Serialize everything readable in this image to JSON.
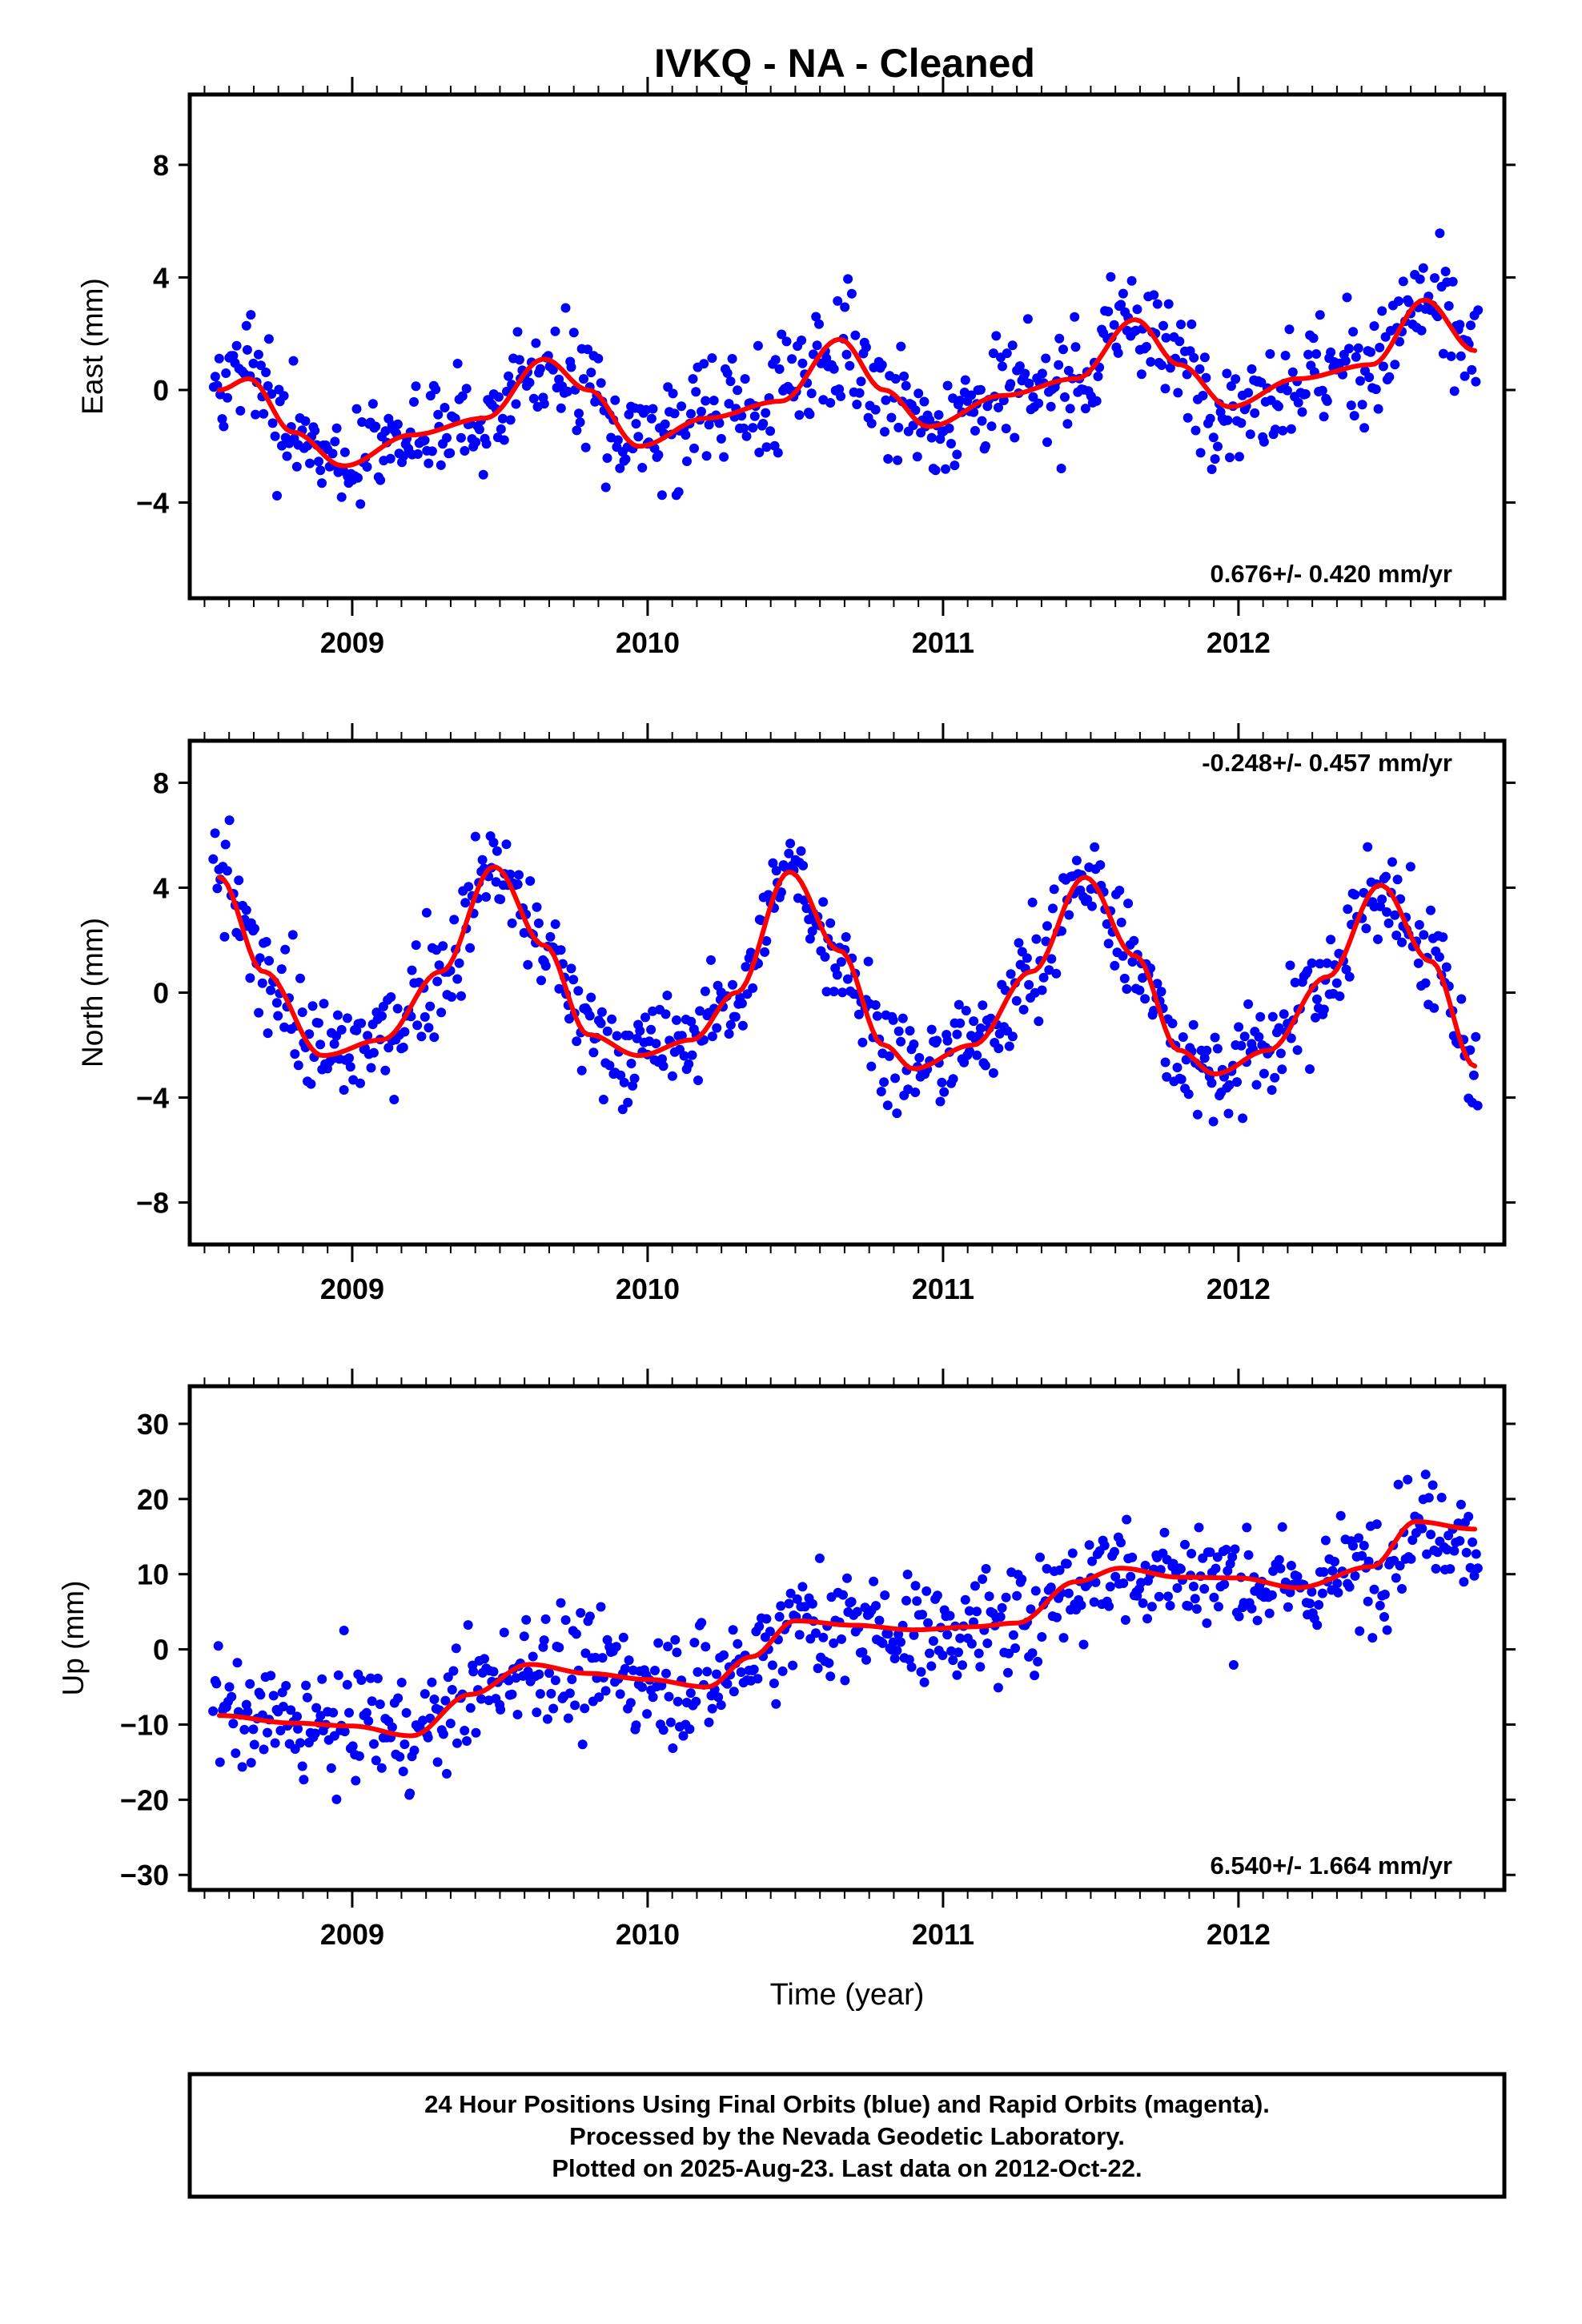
{
  "title": "IVKQ  - NA - Cleaned",
  "colors": {
    "final_orbits": "#0000ff",
    "rapid_orbits": "#ff00ff",
    "model": "#ff0000",
    "frame": "#000000"
  },
  "footer": {
    "line1": "24 Hour Positions Using Final Orbits (blue) and Rapid Orbits (magenta).",
    "line2": "Processed by the Nevada Geodetic Laboratory.",
    "line3": "Plotted on 2025-Aug-23. Last data on 2012-Oct-22."
  },
  "chart_data": [
    {
      "type": "scatter",
      "ylabel": "East (mm)",
      "xlabel": "",
      "xlim": [
        2008.45,
        2012.9
      ],
      "ylim": [
        -7.4,
        10.5
      ],
      "x_ticks": [
        2009,
        2010,
        2011,
        2012
      ],
      "x_tick_labels": [
        "2009",
        "2010",
        "2011",
        "2012"
      ],
      "y_ticks": [
        -4,
        0,
        4,
        8
      ],
      "y_tick_labels": [
        "−4",
        "0",
        "4",
        "8"
      ],
      "rate_label": "0.676+/- 0.420 mm/yr",
      "rate_position": "bottom-right",
      "series": [
        {
          "kind": "points",
          "color": "blue",
          "time_range": [
            2008.53,
            2012.81
          ],
          "scatter_sd": 1.6,
          "count": 700
        },
        {
          "kind": "line",
          "color": "red",
          "x": [
            2008.55,
            2008.65,
            2008.8,
            2008.97,
            2009.2,
            2009.45,
            2009.65,
            2009.8,
            2009.97,
            2010.2,
            2010.45,
            2010.65,
            2010.8,
            2010.95,
            2011.2,
            2011.45,
            2011.65,
            2011.8,
            2011.97,
            2012.2,
            2012.45,
            2012.63,
            2012.8
          ],
          "y": [
            0.0,
            0.4,
            -1.5,
            -2.7,
            -1.6,
            -1.0,
            1.1,
            0.0,
            -2.0,
            -1.0,
            -0.4,
            1.8,
            0.0,
            -1.3,
            -0.2,
            0.4,
            2.5,
            0.9,
            -0.6,
            0.4,
            0.9,
            3.2,
            1.4
          ]
        }
      ]
    },
    {
      "type": "scatter",
      "ylabel": "North (mm)",
      "xlabel": "",
      "xlim": [
        2008.45,
        2012.9
      ],
      "ylim": [
        -9.6,
        9.6
      ],
      "x_ticks": [
        2009,
        2010,
        2011,
        2012
      ],
      "x_tick_labels": [
        "2009",
        "2010",
        "2011",
        "2012"
      ],
      "y_ticks": [
        -8,
        -4,
        0,
        4,
        8
      ],
      "y_tick_labels": [
        "−8",
        "−4",
        "0",
        "4",
        "8"
      ],
      "rate_label": "-0.248+/- 0.457 mm/yr",
      "rate_position": "top-right",
      "series": [
        {
          "kind": "points",
          "color": "blue",
          "time_range": [
            2008.53,
            2012.81
          ],
          "scatter_sd": 1.6,
          "count": 700
        },
        {
          "kind": "line",
          "color": "red",
          "x": [
            2008.55,
            2008.7,
            2008.9,
            2009.1,
            2009.3,
            2009.48,
            2009.65,
            2009.8,
            2009.97,
            2010.15,
            2010.3,
            2010.48,
            2010.65,
            2010.8,
            2010.9,
            2011.1,
            2011.3,
            2011.48,
            2011.65,
            2011.8,
            2011.92,
            2012.1,
            2012.3,
            2012.48,
            2012.65,
            2012.8
          ],
          "y": [
            4.4,
            0.8,
            -2.4,
            -1.8,
            0.8,
            4.8,
            1.8,
            -1.6,
            -2.4,
            -1.8,
            0.0,
            4.6,
            1.6,
            -2.0,
            -2.9,
            -2.0,
            0.8,
            4.4,
            1.4,
            -2.2,
            -3.1,
            -2.2,
            0.6,
            4.1,
            1.2,
            -2.8
          ]
        }
      ]
    },
    {
      "type": "scatter",
      "ylabel": "Up (mm)",
      "xlabel": "Time (year)",
      "xlim": [
        2008.45,
        2012.9
      ],
      "ylim": [
        -32,
        35
      ],
      "x_ticks": [
        2009,
        2010,
        2011,
        2012
      ],
      "x_tick_labels": [
        "2009",
        "2010",
        "2011",
        "2012"
      ],
      "y_ticks": [
        -30,
        -20,
        -10,
        0,
        10,
        20,
        30
      ],
      "y_tick_labels": [
        "−30",
        "−20",
        "−10",
        "0",
        "10",
        "20",
        "30"
      ],
      "rate_label": "6.540+/- 1.664 mm/yr",
      "rate_position": "bottom-right",
      "series": [
        {
          "kind": "points",
          "color": "blue",
          "time_range": [
            2008.53,
            2012.81
          ],
          "scatter_sd": 6.0,
          "count": 700
        },
        {
          "kind": "line",
          "color": "red",
          "x": [
            2008.55,
            2008.8,
            2009.0,
            2009.2,
            2009.4,
            2009.6,
            2009.8,
            2010.0,
            2010.2,
            2010.35,
            2010.5,
            2010.7,
            2010.9,
            2011.1,
            2011.25,
            2011.45,
            2011.6,
            2011.8,
            2012.0,
            2012.2,
            2012.45,
            2012.6,
            2012.8
          ],
          "y": [
            -8.8,
            -9.8,
            -10.2,
            -11.5,
            -6.0,
            -2.0,
            -3.2,
            -4.0,
            -5.0,
            -1.0,
            3.8,
            3.2,
            2.6,
            3.0,
            3.5,
            9.0,
            10.8,
            9.6,
            9.5,
            8.2,
            11.0,
            17.0,
            16.0
          ]
        }
      ]
    }
  ]
}
